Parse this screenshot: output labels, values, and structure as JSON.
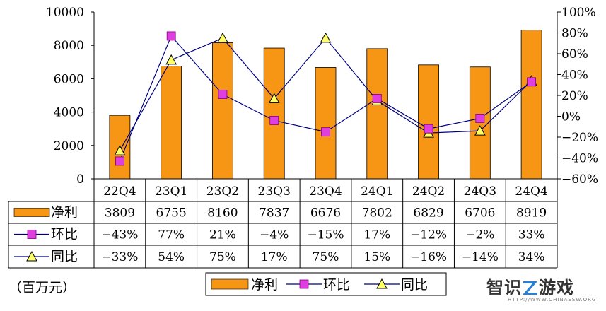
{
  "chart_data": {
    "type": "bar",
    "categories": [
      "22Q4",
      "23Q1",
      "23Q2",
      "23Q3",
      "23Q4",
      "24Q1",
      "24Q2",
      "24Q3",
      "24Q4"
    ],
    "series": [
      {
        "name": "净利",
        "kind": "bar",
        "axis": "left",
        "color": "#F79514",
        "values": [
          3809,
          6755,
          8160,
          7837,
          6676,
          7802,
          6829,
          6706,
          8919
        ],
        "labels": [
          "3809",
          "6755",
          "8160",
          "7837",
          "6676",
          "7802",
          "6829",
          "6706",
          "8919"
        ]
      },
      {
        "name": "环比",
        "kind": "line",
        "marker": "square",
        "axis": "right",
        "color": "#E03FE0",
        "line_color": "#000080",
        "values": [
          -43,
          77,
          21,
          -4,
          -15,
          17,
          -12,
          -2,
          33
        ],
        "labels": [
          "−43%",
          "77%",
          "21%",
          "−4%",
          "−15%",
          "17%",
          "−12%",
          "−2%",
          "33%"
        ]
      },
      {
        "name": "同比",
        "kind": "line",
        "marker": "triangle",
        "axis": "right",
        "color": "#FFFF66",
        "line_color": "#000080",
        "values": [
          -33,
          54,
          75,
          17,
          75,
          15,
          -16,
          -14,
          34
        ],
        "labels": [
          "−33%",
          "54%",
          "75%",
          "17%",
          "75%",
          "15%",
          "−16%",
          "−14%",
          "34%"
        ]
      }
    ],
    "y_left": {
      "ylim": [
        0,
        10000
      ],
      "ticks": [
        0,
        2000,
        4000,
        6000,
        8000,
        10000
      ],
      "tick_labels": [
        "0",
        "2000",
        "4000",
        "6000",
        "8000",
        "10000"
      ]
    },
    "y_right": {
      "ylim": [
        -60,
        100
      ],
      "ticks": [
        -60,
        -40,
        -20,
        0,
        20,
        40,
        60,
        80,
        100
      ],
      "tick_labels": [
        "−60%",
        "−40%",
        "−20%",
        "0%",
        "20%",
        "40%",
        "60%",
        "80%",
        "100%"
      ]
    },
    "has_data_table": true,
    "legend_position": "bottom",
    "grid": false
  },
  "unit_note": "（百万元）",
  "watermark": {
    "main": "智识",
    "brand": "游戏",
    "sub": "HTTP://WWW.CHINASSW.ORG"
  }
}
